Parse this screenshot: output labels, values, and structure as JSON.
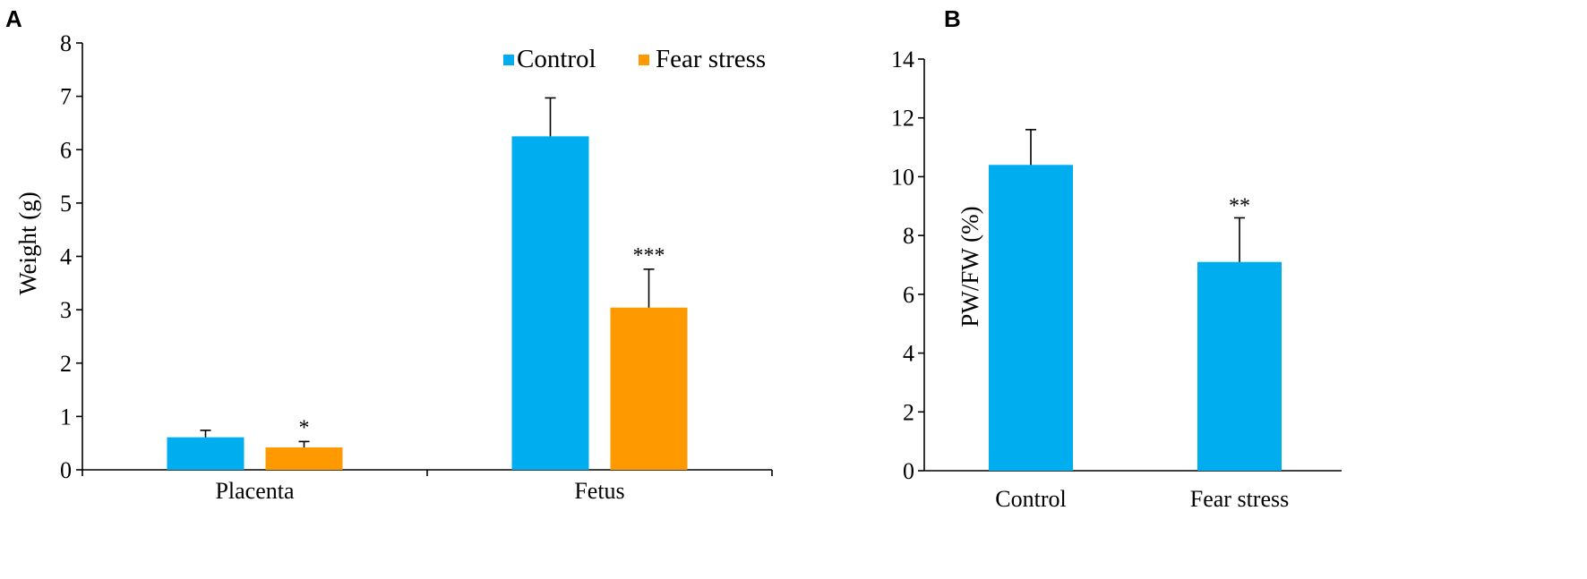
{
  "chart_data": [
    {
      "panel": "A",
      "type": "bar",
      "categories": [
        "Placenta",
        "Fetus"
      ],
      "series": [
        {
          "name": "Control",
          "values": [
            0.61,
            6.25
          ],
          "errors": [
            0.13,
            0.72
          ],
          "significance": [
            "",
            ""
          ],
          "color": "#00aeef"
        },
        {
          "name": "Fear stress",
          "values": [
            0.42,
            3.04
          ],
          "errors": [
            0.11,
            0.72
          ],
          "significance": [
            "*",
            "***"
          ],
          "color": "#ff9900"
        }
      ],
      "title": "",
      "xlabel": "",
      "ylabel": "Weight (g)",
      "ylim": [
        0,
        8
      ],
      "yticks": [
        "0",
        "1",
        "2",
        "3",
        "4",
        "5",
        "6",
        "7",
        "8"
      ],
      "grid": false,
      "legend": "top-right"
    },
    {
      "panel": "B",
      "type": "bar",
      "categories": [
        "Control",
        "Fear stress"
      ],
      "values": [
        10.4,
        7.1
      ],
      "errors": [
        1.2,
        1.5
      ],
      "significance": [
        "",
        "**"
      ],
      "color": "#00aeef",
      "title": "",
      "xlabel": "",
      "ylabel": "PW/FW (%)",
      "ylim": [
        0,
        14
      ],
      "yticks": [
        "0",
        "2",
        "4",
        "6",
        "8",
        "10",
        "12",
        "14"
      ],
      "grid": false,
      "legend": "none"
    }
  ]
}
